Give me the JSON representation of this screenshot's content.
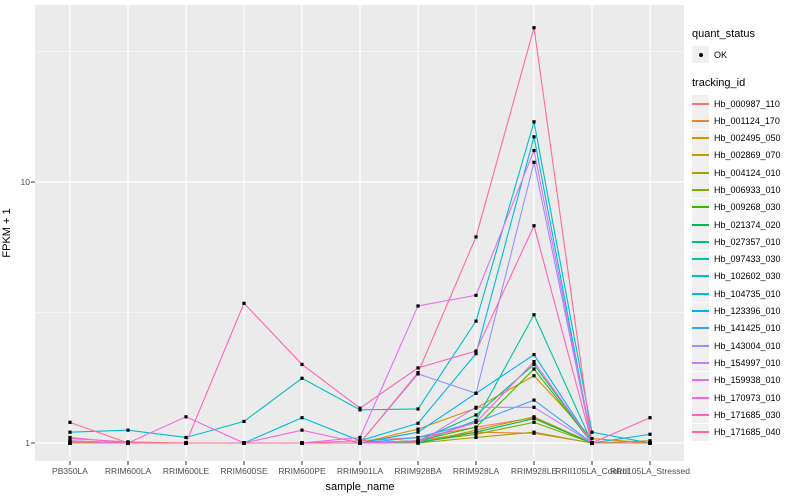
{
  "figure": {
    "bg": "#FFFFFF",
    "panel_bg": "#EBEBEB",
    "grid_color": "#FFFFFF",
    "tick_color": "#333333",
    "axis_text_color": "#4D4D4D",
    "point_color": "#000000"
  },
  "axes": {
    "x_title": "sample_name",
    "y_title": "FPKM + 1",
    "y_ticks": [
      {
        "label": "1",
        "value": 1
      },
      {
        "label": "10",
        "value": 10
      }
    ],
    "y_minor_values": [
      3.1623,
      31.623
    ]
  },
  "legend": {
    "quant_title": "quant_status",
    "quant_items": [
      {
        "label": "OK",
        "symbol": "black-point"
      }
    ],
    "tracking_title": "tracking_id"
  },
  "chart_data": {
    "type": "line",
    "title": "",
    "xlabel": "sample_name",
    "ylabel": "FPKM + 1",
    "y_scale": "log10",
    "ylim": [
      0.95,
      45
    ],
    "grid": true,
    "legend_position": "right",
    "point_marker": "small black square (quant_status = OK)",
    "categories": [
      "PB350LA",
      "RRIM600LA",
      "RRIM600LE",
      "RRIM600SE",
      "RRIM600PE",
      "RRIM901LA",
      "RRIM928BA",
      "RRIM928LA",
      "RRIM928LE",
      "RRII105LA_Control",
      "RRII105LA_Stressed"
    ],
    "series": [
      {
        "name": "Hb_000987_110",
        "color": "#F8766D",
        "values": [
          1.04,
          1.01,
          1.0,
          1.0,
          1.0,
          1.02,
          1.05,
          1.15,
          1.25,
          1.0,
          1.0
        ]
      },
      {
        "name": "Hb_001124_170",
        "color": "#EA8331",
        "values": [
          1.0,
          1.0,
          1.0,
          1.0,
          1.0,
          1.0,
          1.02,
          1.1,
          1.09,
          1.0,
          1.0
        ]
      },
      {
        "name": "Hb_002495_050",
        "color": "#D89000",
        "values": [
          1.0,
          1.0,
          1.0,
          1.0,
          1.0,
          1.0,
          1.13,
          1.36,
          1.81,
          1.04,
          1.0
        ]
      },
      {
        "name": "Hb_002869_070",
        "color": "#C09B00",
        "values": [
          1.01,
          1.0,
          1.0,
          1.0,
          1.0,
          1.0,
          1.0,
          1.12,
          1.26,
          1.0,
          1.0
        ]
      },
      {
        "name": "Hb_004124_010",
        "color": "#A3A500",
        "values": [
          1.0,
          1.0,
          1.0,
          1.0,
          1.0,
          1.0,
          1.0,
          1.05,
          1.1,
          1.0,
          1.02
        ]
      },
      {
        "name": "Hb_006933_010",
        "color": "#7CAE00",
        "values": [
          1.0,
          1.0,
          1.0,
          1.0,
          1.0,
          1.0,
          1.01,
          1.08,
          1.2,
          1.0,
          1.0
        ]
      },
      {
        "name": "Hb_009268_030",
        "color": "#39B600",
        "values": [
          1.0,
          1.0,
          1.0,
          1.0,
          1.0,
          1.0,
          1.02,
          1.15,
          1.92,
          1.0,
          1.0
        ]
      },
      {
        "name": "Hb_021374_020",
        "color": "#00BB4E",
        "values": [
          1.0,
          1.0,
          1.0,
          1.0,
          1.0,
          1.0,
          1.0,
          1.1,
          1.24,
          1.0,
          1.0
        ]
      },
      {
        "name": "Hb_027357_010",
        "color": "#00BF7D",
        "values": [
          1.0,
          1.0,
          1.0,
          1.0,
          1.0,
          1.0,
          1.02,
          1.28,
          2.0,
          1.0,
          1.0
        ]
      },
      {
        "name": "Hb_097433_030",
        "color": "#00C1A3",
        "values": [
          1.02,
          1.0,
          1.0,
          1.0,
          1.0,
          1.0,
          1.0,
          1.22,
          3.1,
          1.0,
          1.0
        ]
      },
      {
        "name": "Hb_102602_030",
        "color": "#00BFC4",
        "values": [
          1.1,
          1.12,
          1.05,
          1.21,
          1.77,
          1.34,
          1.35,
          2.93,
          17.0,
          1.1,
          1.0
        ]
      },
      {
        "name": "Hb_104735_010",
        "color": "#00BAE0",
        "values": [
          1.0,
          1.0,
          1.0,
          1.0,
          1.25,
          1.02,
          1.19,
          2.2,
          14.9,
          1.0,
          1.08
        ]
      },
      {
        "name": "Hb_123396_010",
        "color": "#00B0F6",
        "values": [
          1.0,
          1.0,
          1.0,
          1.0,
          1.0,
          1.0,
          1.1,
          1.55,
          2.18,
          1.0,
          1.0
        ]
      },
      {
        "name": "Hb_141425_010",
        "color": "#35A2FF",
        "values": [
          1.0,
          1.0,
          1.0,
          1.0,
          1.0,
          1.0,
          1.05,
          1.2,
          1.46,
          1.0,
          1.0
        ]
      },
      {
        "name": "Hb_143004_010",
        "color": "#9590FF",
        "values": [
          1.0,
          1.0,
          1.0,
          1.0,
          1.0,
          1.0,
          1.84,
          1.55,
          11.9,
          1.0,
          1.0
        ]
      },
      {
        "name": "Hb_154997_010",
        "color": "#C77CFF",
        "values": [
          1.02,
          1.0,
          1.0,
          1.0,
          1.0,
          1.0,
          1.0,
          1.37,
          1.37,
          1.0,
          1.0
        ]
      },
      {
        "name": "Hb_159938_010",
        "color": "#E76BF3",
        "values": [
          1.0,
          1.0,
          1.0,
          1.0,
          1.0,
          1.05,
          3.35,
          3.68,
          13.2,
          1.0,
          1.0
        ]
      },
      {
        "name": "Hb_170973_010",
        "color": "#FA62DB",
        "values": [
          1.05,
          1.0,
          1.26,
          1.0,
          1.12,
          1.0,
          1.02,
          1.2,
          2.05,
          1.0,
          1.0
        ]
      },
      {
        "name": "Hb_171685_030",
        "color": "#FF62BC",
        "values": [
          1.0,
          1.0,
          1.0,
          3.43,
          2.0,
          1.36,
          1.94,
          2.25,
          6.8,
          1.0,
          1.25
        ]
      },
      {
        "name": "Hb_171685_040",
        "color": "#FF6A98",
        "values": [
          1.2,
          1.0,
          1.0,
          1.0,
          1.0,
          1.0,
          1.86,
          6.16,
          39.0,
          1.0,
          1.0
        ]
      }
    ]
  }
}
